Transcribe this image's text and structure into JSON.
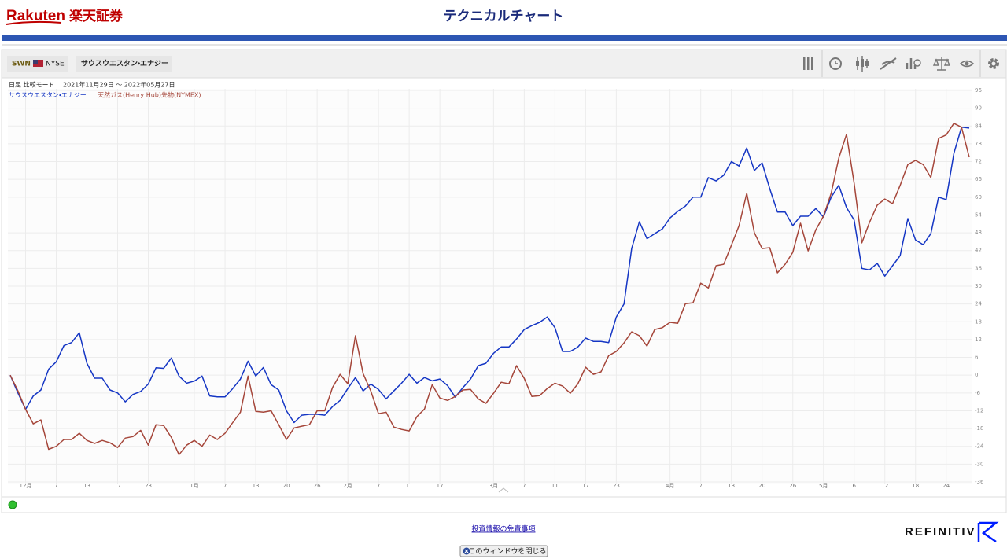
{
  "header": {
    "brand": "Rakuten",
    "brand_jp": "楽天証券",
    "title": "テクニカルチャート"
  },
  "toolbar": {
    "symbol": "SWN",
    "exchange": "NYSE",
    "name": "サウスウエスタン・エナジー"
  },
  "chart_data": {
    "type": "line",
    "mode": "日足 比較モード",
    "period": "2021年11月29日 ～ 2022年05月27日",
    "categories": [
      null,
      null,
      "12月",
      null,
      null,
      null,
      "7",
      null,
      null,
      null,
      "13",
      null,
      null,
      null,
      "17",
      null,
      null,
      null,
      "23",
      null,
      null,
      null,
      null,
      null,
      "1月",
      null,
      null,
      null,
      "7",
      null,
      null,
      null,
      "13",
      null,
      null,
      null,
      "20",
      null,
      null,
      null,
      "26",
      null,
      null,
      null,
      "2月",
      null,
      null,
      null,
      "7",
      null,
      null,
      null,
      "11",
      null,
      null,
      null,
      "17",
      null,
      null,
      null,
      null,
      null,
      null,
      "3月",
      null,
      null,
      null,
      "7",
      null,
      null,
      null,
      "11",
      null,
      null,
      null,
      "17",
      null,
      null,
      null,
      "23",
      null,
      null,
      null,
      null,
      null,
      null,
      "4月",
      null,
      null,
      null,
      "7",
      null,
      null,
      null,
      "13",
      null,
      null,
      null,
      "20",
      null,
      null,
      null,
      "26",
      null,
      null,
      null,
      "5月",
      null,
      null,
      null,
      "6",
      null,
      null,
      null,
      "12",
      null,
      null,
      null,
      "18",
      null,
      null,
      null,
      "24",
      null,
      null,
      null
    ],
    "series": [
      {
        "name": "サウスウエスタン・エナジー",
        "color": "#1536c4",
        "values": [
          0,
          -6,
          -11.5,
          -7,
          -5,
          2,
          4.5,
          10,
          11,
          14.3,
          4,
          -1,
          -1,
          -5,
          -6,
          -9,
          -6.5,
          -5.5,
          -3,
          2.5,
          2.3,
          5.8,
          -0.3,
          -2.7,
          -2,
          -0.3,
          -7,
          -7.3,
          -7.3,
          -4.5,
          -1.3,
          4.7,
          -0.3,
          2.6,
          -3.2,
          -5,
          -12,
          -16,
          -13.5,
          -13.2,
          -13.2,
          -13.5,
          -10.6,
          -8.5,
          -4.5,
          -0.8,
          -5.3,
          -3,
          -4.8,
          -8,
          -5.3,
          -2.7,
          0.3,
          -2.7,
          -0.8,
          -1.9,
          -1.3,
          -3.5,
          -7.4,
          -4.2,
          -1.3,
          3.2,
          4,
          7.4,
          9.5,
          9.5,
          12.2,
          15.4,
          16.7,
          17.8,
          19.6,
          16,
          8,
          8,
          9.5,
          12.5,
          11.4,
          11.4,
          11,
          19.6,
          24,
          42.7,
          51.7,
          46,
          47.7,
          49.3,
          53,
          55.2,
          57,
          60,
          60,
          66.6,
          65.5,
          67.4,
          72,
          70.5,
          76.6,
          69,
          71.6,
          62.9,
          55,
          55,
          50.4,
          53.6,
          53.6,
          56.2,
          53.3,
          60,
          64,
          56.5,
          52.3,
          36,
          35.5,
          37.7,
          33.4,
          36.9,
          40.3,
          52.8,
          45.6,
          44,
          47.7,
          60,
          59.2,
          74.8,
          83.6,
          83.3
        ]
      },
      {
        "name": "天然ガス(Henry Hub)先物(NYMEX)",
        "color": "#a5463a",
        "values": [
          0,
          -5.3,
          -11.5,
          -16.4,
          -15.1,
          -25,
          -24,
          -21.7,
          -21.7,
          -19.6,
          -22,
          -23,
          -22,
          -22.8,
          -24.4,
          -21.2,
          -20.7,
          -18.6,
          -23.6,
          -16.7,
          -17,
          -21,
          -26.8,
          -23.6,
          -22,
          -24,
          -20.2,
          -21.7,
          -19.6,
          -16,
          -12.5,
          -0.3,
          -12.2,
          -12.5,
          -12,
          -16.7,
          -21.7,
          -17.8,
          -17.2,
          -16.7,
          -12,
          -12,
          -4.2,
          0.3,
          -2.9,
          13.3,
          0.5,
          -5.3,
          -13,
          -12.5,
          -17.5,
          -18.3,
          -18.8,
          -14,
          -11.4,
          -3.2,
          -7.7,
          -8.5,
          -7.2,
          -5,
          -4.8,
          -8,
          -9.5,
          -6.1,
          -2.4,
          -2.9,
          3.2,
          -1.1,
          -7.2,
          -6.9,
          -4.5,
          -2.7,
          -3.7,
          -6.1,
          -2.9,
          2.7,
          0.3,
          1.1,
          6.6,
          8,
          10.9,
          14.6,
          13.3,
          9.8,
          15.4,
          16,
          17.8,
          17.5,
          24.1,
          24.4,
          31,
          29.4,
          36.9,
          37.4,
          43.8,
          50.4,
          61.3,
          48,
          42.7,
          43,
          34.5,
          37.4,
          41.4,
          51.2,
          41.9,
          49,
          53.6,
          61.3,
          73.2,
          81.2,
          64.7,
          44.6,
          51.5,
          57.3,
          59.4,
          57.8,
          64,
          71,
          72.4,
          71,
          66.6,
          79.8,
          81,
          84.9,
          83.6,
          73.5
        ]
      }
    ],
    "ylim": [
      -36,
      96
    ],
    "yticks": [
      -36,
      -30,
      -24,
      -18,
      -12,
      -6,
      0,
      6,
      12,
      18,
      24,
      30,
      36,
      42,
      48,
      54,
      60,
      66,
      72,
      78,
      84,
      90,
      96
    ],
    "grid": true
  },
  "footer": {
    "disclaimer": "投資情報の免責事項",
    "close_button": "このウィンドウを閉じる",
    "logo": "REFINITIV"
  }
}
